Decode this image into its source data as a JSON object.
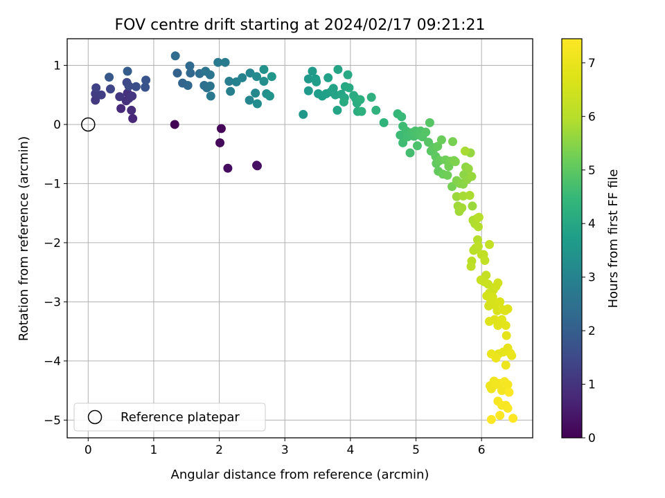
{
  "chart_data": {
    "type": "scatter",
    "title": "FOV centre drift starting at 2024/02/17 09:21:21",
    "xlabel": "Angular distance from reference (arcmin)",
    "ylabel": "Rotation from reference (arcmin)",
    "xlim": [
      -0.32,
      6.78
    ],
    "ylim": [
      -5.3,
      1.45
    ],
    "xticks": [
      0,
      1,
      2,
      3,
      4,
      5,
      6
    ],
    "yticks": [
      1,
      0,
      -1,
      -2,
      -3,
      -4,
      -5
    ],
    "xtick_labels": [
      "0",
      "1",
      "2",
      "3",
      "4",
      "5",
      "6"
    ],
    "ytick_labels": [
      "1",
      "0",
      "−1",
      "−2",
      "−3",
      "−4",
      "−5"
    ],
    "grid": true,
    "legend": {
      "position": "lower-left",
      "label": "Reference platepar"
    },
    "reference_point": {
      "x": 0,
      "y": 0
    },
    "colorbar": {
      "label": "Hours from first FF file",
      "range": [
        0,
        7.45
      ],
      "ticks": [
        0,
        1,
        2,
        3,
        4,
        5,
        6,
        7
      ],
      "tick_labels": [
        "0",
        "1",
        "2",
        "3",
        "4",
        "5",
        "6",
        "7"
      ],
      "colormap": "viridis"
    },
    "series": [
      {
        "points": [
          [
            1.32,
            0.0,
            0.05
          ],
          [
            2.03,
            -0.07,
            0.1
          ],
          [
            2.01,
            -0.31,
            0.15
          ],
          [
            2.13,
            -0.74,
            0.2
          ],
          [
            2.57,
            -0.69,
            0.25
          ],
          [
            2.58,
            -0.7,
            0.3
          ],
          [
            0.68,
            0.1,
            0.75
          ],
          [
            0.5,
            0.27,
            0.8
          ],
          [
            0.66,
            0.24,
            0.85
          ],
          [
            0.58,
            0.4,
            0.9
          ],
          [
            0.6,
            0.53,
            0.95
          ],
          [
            0.62,
            0.44,
            1.0
          ],
          [
            0.67,
            0.48,
            1.05
          ],
          [
            0.48,
            0.47,
            1.1
          ],
          [
            0.11,
            0.41,
            1.15
          ],
          [
            0.11,
            0.52,
            1.2
          ],
          [
            0.2,
            0.5,
            1.25
          ],
          [
            0.12,
            0.62,
            1.3
          ],
          [
            0.34,
            0.6,
            1.4
          ],
          [
            0.59,
            0.71,
            1.5
          ],
          [
            0.62,
            0.65,
            1.55
          ],
          [
            0.73,
            0.64,
            1.6
          ],
          [
            0.87,
            0.63,
            1.7
          ],
          [
            0.88,
            0.75,
            1.75
          ],
          [
            0.32,
            0.8,
            1.85
          ],
          [
            0.6,
            0.9,
            1.95
          ],
          [
            1.36,
            0.87,
            2.1
          ],
          [
            1.44,
            0.7,
            2.15
          ],
          [
            1.52,
            0.66,
            2.2
          ],
          [
            1.56,
            0.87,
            2.25
          ],
          [
            1.55,
            0.99,
            2.3
          ],
          [
            1.33,
            1.16,
            2.35
          ],
          [
            1.7,
            0.86,
            2.4
          ],
          [
            1.77,
            0.66,
            2.45
          ],
          [
            1.81,
            0.62,
            2.5
          ],
          [
            1.86,
            0.65,
            2.55
          ],
          [
            1.79,
            0.9,
            2.6
          ],
          [
            1.86,
            0.84,
            2.65
          ],
          [
            1.87,
            0.48,
            2.7
          ],
          [
            1.98,
            1.05,
            2.75
          ],
          [
            2.09,
            1.05,
            2.8
          ],
          [
            2.15,
            0.73,
            2.85
          ],
          [
            2.17,
            0.56,
            2.9
          ],
          [
            2.26,
            0.72,
            2.95
          ],
          [
            2.35,
            0.79,
            3.0
          ],
          [
            2.47,
            0.87,
            3.05
          ],
          [
            2.46,
            0.41,
            3.1
          ],
          [
            2.55,
            0.53,
            3.15
          ],
          [
            2.57,
            0.81,
            3.2
          ],
          [
            2.58,
            0.35,
            3.25
          ],
          [
            2.68,
            0.73,
            3.3
          ],
          [
            2.72,
            0.52,
            3.35
          ],
          [
            2.68,
            0.93,
            3.4
          ],
          [
            2.77,
            0.48,
            3.45
          ],
          [
            2.8,
            0.81,
            3.5
          ],
          [
            3.28,
            0.17,
            3.55
          ],
          [
            3.36,
            0.77,
            3.6
          ],
          [
            3.36,
            0.57,
            3.62
          ],
          [
            3.42,
            0.9,
            3.65
          ],
          [
            3.47,
            0.77,
            3.68
          ],
          [
            3.48,
            0.72,
            3.7
          ],
          [
            3.51,
            0.52,
            3.72
          ],
          [
            3.57,
            0.48,
            3.75
          ],
          [
            3.63,
            0.52,
            3.78
          ],
          [
            3.66,
            0.79,
            3.8
          ],
          [
            3.7,
            0.55,
            3.82
          ],
          [
            3.74,
            0.61,
            3.85
          ],
          [
            3.77,
            0.5,
            3.88
          ],
          [
            3.81,
            0.93,
            3.9
          ],
          [
            3.8,
            0.24,
            3.92
          ],
          [
            3.86,
            0.51,
            3.95
          ],
          [
            3.91,
            0.45,
            3.98
          ],
          [
            3.92,
            0.64,
            4.0
          ],
          [
            3.96,
            0.84,
            4.02
          ],
          [
            3.98,
            0.62,
            4.05
          ],
          [
            3.9,
            0.38,
            4.08
          ],
          [
            4.05,
            0.49,
            4.1
          ],
          [
            4.08,
            0.44,
            4.12
          ],
          [
            4.1,
            0.36,
            4.15
          ],
          [
            4.11,
            0.22,
            4.18
          ],
          [
            4.15,
            0.42,
            4.2
          ],
          [
            4.17,
            0.22,
            4.22
          ],
          [
            4.32,
            0.46,
            4.25
          ],
          [
            4.39,
            0.24,
            4.3
          ],
          [
            4.51,
            0.03,
            4.35
          ],
          [
            4.72,
            0.18,
            4.45
          ],
          [
            4.78,
            0.13,
            4.5
          ],
          [
            4.76,
            -0.18,
            4.55
          ],
          [
            4.8,
            -0.03,
            4.58
          ],
          [
            4.8,
            -0.31,
            4.6
          ],
          [
            4.85,
            -0.11,
            4.62
          ],
          [
            4.87,
            -0.21,
            4.65
          ],
          [
            4.91,
            -0.48,
            4.68
          ],
          [
            4.93,
            -0.14,
            4.7
          ],
          [
            4.97,
            -0.2,
            4.72
          ],
          [
            4.99,
            -0.11,
            4.75
          ],
          [
            5.02,
            -0.36,
            4.78
          ],
          [
            5.05,
            -0.18,
            4.8
          ],
          [
            5.07,
            -0.11,
            4.82
          ],
          [
            5.1,
            -0.21,
            4.85
          ],
          [
            5.15,
            -0.13,
            4.88
          ],
          [
            5.19,
            -0.3,
            4.9
          ],
          [
            5.21,
            0.03,
            4.92
          ],
          [
            5.23,
            -0.45,
            4.95
          ],
          [
            5.26,
            -0.39,
            4.98
          ],
          [
            5.28,
            -0.4,
            5.0
          ],
          [
            5.3,
            -0.54,
            5.02
          ],
          [
            5.31,
            -0.66,
            5.05
          ],
          [
            5.33,
            -0.37,
            5.08
          ],
          [
            5.34,
            -0.79,
            5.1
          ],
          [
            5.36,
            -0.61,
            5.12
          ],
          [
            5.39,
            -0.26,
            5.15
          ],
          [
            5.41,
            -0.84,
            5.18
          ],
          [
            5.45,
            -0.6,
            5.2
          ],
          [
            5.48,
            -0.86,
            5.22
          ],
          [
            5.5,
            -0.71,
            5.25
          ],
          [
            5.52,
            -0.62,
            5.28
          ],
          [
            5.55,
            -1.05,
            5.3
          ],
          [
            5.56,
            -0.29,
            5.32
          ],
          [
            5.58,
            -0.61,
            5.35
          ],
          [
            5.6,
            -0.63,
            5.38
          ],
          [
            5.62,
            -0.95,
            5.4
          ],
          [
            5.65,
            -0.98,
            5.42
          ],
          [
            5.67,
            -1.0,
            5.45
          ],
          [
            5.7,
            -1.0,
            5.48
          ],
          [
            5.72,
            -1.01,
            5.5
          ],
          [
            5.73,
            -0.85,
            5.52
          ],
          [
            5.76,
            -0.72,
            5.55
          ],
          [
            5.78,
            -0.93,
            5.58
          ],
          [
            5.8,
            -0.75,
            5.6
          ],
          [
            5.83,
            -0.48,
            5.62
          ],
          [
            5.85,
            -0.88,
            5.65
          ],
          [
            5.86,
            -1.38,
            5.68
          ],
          [
            5.62,
            -1.22,
            5.7
          ],
          [
            5.64,
            -1.38,
            5.72
          ],
          [
            5.66,
            -1.47,
            5.75
          ],
          [
            5.7,
            -1.41,
            5.78
          ],
          [
            5.72,
            -1.21,
            5.8
          ],
          [
            5.75,
            -0.45,
            5.82
          ],
          [
            5.82,
            -1.2,
            5.85
          ],
          [
            5.87,
            -1.62,
            5.88
          ],
          [
            5.9,
            -1.68,
            5.9
          ],
          [
            5.93,
            -1.59,
            5.92
          ],
          [
            5.95,
            -1.73,
            5.95
          ],
          [
            5.96,
            -1.57,
            5.98
          ],
          [
            5.94,
            -1.95,
            6.0
          ],
          [
            5.91,
            -2.09,
            6.02
          ],
          [
            5.88,
            -2.13,
            6.05
          ],
          [
            5.85,
            -2.31,
            6.08
          ],
          [
            5.84,
            -2.4,
            6.1
          ],
          [
            5.95,
            -2.06,
            6.12
          ],
          [
            6.0,
            -2.2,
            6.15
          ],
          [
            6.03,
            -2.2,
            6.18
          ],
          [
            6.05,
            -2.3,
            6.2
          ],
          [
            6.12,
            -2.03,
            6.22
          ],
          [
            6.07,
            -2.55,
            6.25
          ],
          [
            6.04,
            -2.66,
            6.28
          ],
          [
            5.99,
            -2.63,
            6.3
          ],
          [
            6.1,
            -2.7,
            6.35
          ],
          [
            6.12,
            -2.85,
            6.4
          ],
          [
            6.18,
            -2.8,
            6.42
          ],
          [
            6.22,
            -2.74,
            6.45
          ],
          [
            6.25,
            -2.68,
            6.48
          ],
          [
            6.08,
            -2.9,
            6.5
          ],
          [
            6.11,
            -3.07,
            6.52
          ],
          [
            6.14,
            -3.0,
            6.55
          ],
          [
            6.17,
            -2.92,
            6.58
          ],
          [
            6.2,
            -3.05,
            6.6
          ],
          [
            6.24,
            -3.15,
            6.62
          ],
          [
            6.28,
            -3.0,
            6.65
          ],
          [
            6.32,
            -3.13,
            6.68
          ],
          [
            6.36,
            -3.15,
            6.7
          ],
          [
            6.4,
            -3.12,
            6.72
          ],
          [
            6.12,
            -3.33,
            6.75
          ],
          [
            6.2,
            -3.3,
            6.78
          ],
          [
            6.25,
            -3.4,
            6.8
          ],
          [
            6.31,
            -3.3,
            6.82
          ],
          [
            6.37,
            -3.4,
            6.85
          ],
          [
            6.38,
            -3.57,
            6.88
          ],
          [
            6.26,
            -3.88,
            6.9
          ],
          [
            6.33,
            -3.85,
            6.92
          ],
          [
            6.4,
            -3.78,
            6.95
          ],
          [
            6.44,
            -3.87,
            6.98
          ],
          [
            6.46,
            -3.91,
            7.0
          ],
          [
            6.15,
            -3.88,
            7.02
          ],
          [
            6.22,
            -3.95,
            7.05
          ],
          [
            6.37,
            -4.07,
            7.08
          ],
          [
            6.13,
            -4.42,
            7.1
          ],
          [
            6.15,
            -4.47,
            7.12
          ],
          [
            6.19,
            -4.34,
            7.15
          ],
          [
            6.22,
            -4.4,
            7.18
          ],
          [
            6.27,
            -4.38,
            7.2
          ],
          [
            6.31,
            -4.5,
            7.22
          ],
          [
            6.35,
            -4.35,
            7.25
          ],
          [
            6.4,
            -4.4,
            7.28
          ],
          [
            6.25,
            -4.68,
            7.3
          ],
          [
            6.31,
            -4.75,
            7.32
          ],
          [
            6.37,
            -4.75,
            7.35
          ],
          [
            6.4,
            -4.8,
            7.38
          ],
          [
            6.42,
            -4.53,
            7.4
          ],
          [
            6.15,
            -4.99,
            7.42
          ],
          [
            6.28,
            -4.92,
            7.43
          ],
          [
            6.48,
            -4.97,
            7.45
          ]
        ]
      }
    ]
  }
}
